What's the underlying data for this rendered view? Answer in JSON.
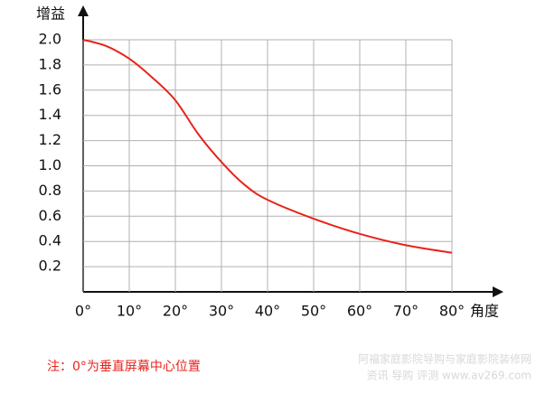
{
  "chart_data": {
    "type": "line",
    "y_label": "增益",
    "x_label": "角度",
    "note": "注：0°为垂直屏幕中心位置",
    "watermark": [
      "阿福家庭影院导购与家庭影院装修网",
      "资讯 导购 评测 www.av269.com"
    ],
    "x": [
      0,
      5,
      10,
      15,
      20,
      25,
      30,
      35,
      40,
      50,
      60,
      70,
      80
    ],
    "series": [
      {
        "color": "#e8231b",
        "values": [
          2.0,
          1.95,
          1.85,
          1.7,
          1.52,
          1.25,
          1.03,
          0.85,
          0.73,
          0.58,
          0.46,
          0.37,
          0.31
        ]
      }
    ],
    "xlim": [
      0,
      80
    ],
    "xticks": [
      {
        "value": 0,
        "label": "0°"
      },
      {
        "value": 10,
        "label": "10°"
      },
      {
        "value": 20,
        "label": "20°"
      },
      {
        "value": 30,
        "label": "30°"
      },
      {
        "value": 40,
        "label": "40°"
      },
      {
        "value": 50,
        "label": "50°"
      },
      {
        "value": 60,
        "label": "60°"
      },
      {
        "value": 70,
        "label": "70°"
      },
      {
        "value": 80,
        "label": "80°"
      }
    ],
    "ylim": [
      0,
      2.0
    ],
    "yticks": [
      0.2,
      0.4,
      0.6,
      0.8,
      {
        "value": 1.0,
        "label": "1.0"
      },
      1.2,
      1.4,
      1.6,
      1.8,
      {
        "value": 2.0,
        "label": "2.0"
      }
    ],
    "grid": true
  }
}
